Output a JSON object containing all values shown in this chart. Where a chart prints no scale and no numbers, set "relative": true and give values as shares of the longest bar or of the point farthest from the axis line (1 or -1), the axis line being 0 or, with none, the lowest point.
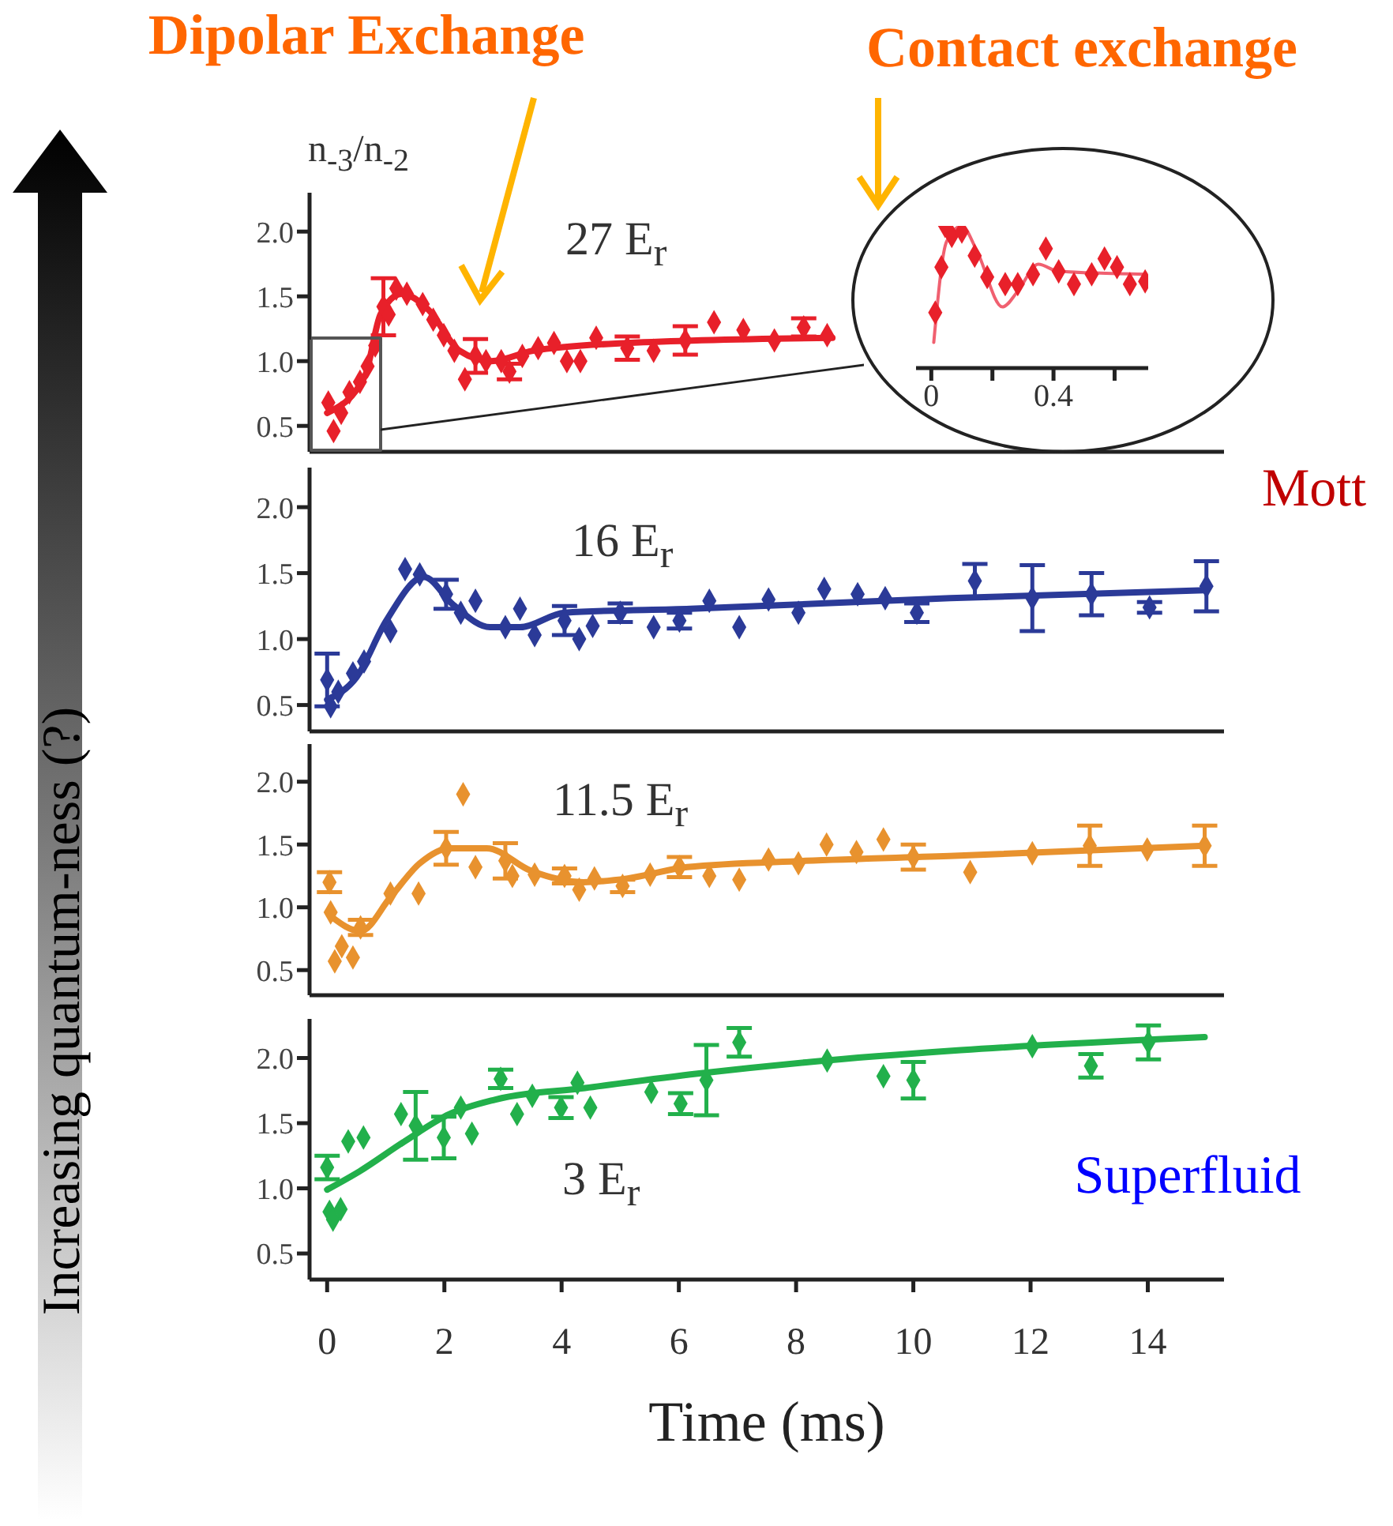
{
  "chart_data": [
    {
      "type": "scatter",
      "title": "27 E$_{r}$",
      "ylabel": "n$_{-3}$/n$_{-2}$",
      "annotations": [
        "Dipolar Exchange",
        "Contact exchange",
        "Increasing quantum-ness (?)"
      ],
      "xlim": [
        -0.3,
        15.3
      ],
      "xticks": [
        0,
        2,
        4,
        6,
        8,
        10,
        12,
        14
      ],
      "ylim": [
        0.3,
        2.3
      ],
      "yticks": [
        {
          "value": 0.5,
          "label": "0.5"
        },
        {
          "value": 1,
          "label": "1.0"
        },
        {
          "value": 1.5,
          "label": "1.5"
        },
        {
          "value": 2,
          "label": "2.0"
        }
      ],
      "tick_labels": "y",
      "series": [
        {
          "type": "scatter",
          "marker": "diamond",
          "color": "#e8202a",
          "x": [
            0.02,
            0.11,
            0.24,
            0.38,
            0.56,
            0.69,
            0.82,
            0.96,
            1.05,
            1.18,
            1.36,
            1.63,
            1.81,
            1.99,
            2.17,
            2.35,
            2.53,
            2.71,
            2.97,
            3.11,
            3.33,
            3.6,
            3.87,
            4.09,
            4.32,
            4.59,
            5.12,
            5.57,
            6.11,
            6.6,
            7.1,
            7.63,
            8.13,
            8.53
          ],
          "values": [
            0.68,
            0.46,
            0.6,
            0.76,
            0.84,
            0.96,
            1.12,
            1.42,
            1.36,
            1.56,
            1.52,
            1.44,
            1.32,
            1.2,
            1.08,
            0.86,
            1.04,
            1.0,
            1.0,
            0.92,
            1.04,
            1.1,
            1.14,
            1.0,
            1.0,
            1.18,
            1.1,
            1.08,
            1.16,
            1.3,
            1.24,
            1.16,
            1.26,
            1.2
          ],
          "errors": [
            null,
            null,
            null,
            null,
            null,
            null,
            null,
            0.22,
            null,
            null,
            null,
            null,
            null,
            null,
            null,
            null,
            0.13,
            null,
            null,
            0.06,
            null,
            null,
            null,
            null,
            null,
            null,
            0.09,
            null,
            0.11,
            null,
            null,
            null,
            0.07,
            null
          ]
        },
        {
          "type": "line",
          "color": "#e8202a",
          "x": [
            0,
            0.64,
            0.91,
            1.27,
            1.72,
            2.26,
            2.8,
            3.51,
            5.12,
            8.62
          ],
          "values": [
            0.6,
            0.88,
            1.36,
            1.52,
            1.4,
            1.08,
            1.0,
            1.08,
            1.14,
            1.18
          ]
        }
      ]
    },
    {
      "type": "scatter",
      "relative": true,
      "xlim": [
        -0.05,
        0.71
      ],
      "xticks": [
        0,
        {
          "value": 0.2,
          "label": null
        },
        0.4,
        {
          "value": 0.6,
          "label": null
        }
      ],
      "series": [
        {
          "type": "scatter",
          "marker": "diamond",
          "color": "#e8202a",
          "x": [
            0.013,
            0.033,
            0.045,
            0.067,
            0.1,
            0.142,
            0.183,
            0.242,
            0.283,
            0.333,
            0.375,
            0.417,
            0.467,
            0.525,
            0.567,
            0.608,
            0.65,
            0.7
          ],
          "values": [
            0.39,
            0.71,
            1,
            0.93,
            0.96,
            0.79,
            0.64,
            0.59,
            0.59,
            0.66,
            0.84,
            0.68,
            0.59,
            0.66,
            0.77,
            0.71,
            0.59,
            0.61
          ]
        },
        {
          "type": "line",
          "color": "#f06070",
          "x": [
            0.008,
            0.05,
            0.1,
            0.15,
            0.233,
            0.283,
            0.35,
            0.417,
            0.7
          ],
          "values": [
            0.18,
            0.89,
            1,
            0.82,
            0.43,
            0.54,
            0.73,
            0.68,
            0.66
          ]
        }
      ]
    },
    {
      "type": "scatter",
      "title": "16 E$_{r}$",
      "annotations": [
        "Mott"
      ],
      "xlim": [
        -0.3,
        15.3
      ],
      "xticks": [
        0,
        2,
        4,
        6,
        8,
        10,
        12,
        14
      ],
      "ylim": [
        0.3,
        2.3
      ],
      "yticks": [
        {
          "value": 0.5,
          "label": "0.5"
        },
        {
          "value": 1,
          "label": "1.0"
        },
        {
          "value": 1.5,
          "label": "1.5"
        },
        {
          "value": 2,
          "label": "2.0"
        }
      ],
      "tick_labels": "y",
      "series": [
        {
          "type": "scatter",
          "marker": "diamond",
          "color": "#2b3a98",
          "x": [
            0,
            0.06,
            0.19,
            0.44,
            0.63,
            1.08,
            1.33,
            1.58,
            2.03,
            2.28,
            2.53,
            3.04,
            3.29,
            3.54,
            4.05,
            4.3,
            4.53,
            5.0,
            5.57,
            6.01,
            6.52,
            7.03,
            7.53,
            8.04,
            8.48,
            9.05,
            9.52,
            10.06,
            11.05,
            12.03,
            13.04,
            14.03,
            15.0
          ],
          "values": [
            0.69,
            0.49,
            0.6,
            0.74,
            0.83,
            1.06,
            1.53,
            1.49,
            1.34,
            1.2,
            1.29,
            1.09,
            1.23,
            1.03,
            1.14,
            1.0,
            1.1,
            1.2,
            1.09,
            1.14,
            1.29,
            1.09,
            1.3,
            1.2,
            1.38,
            1.34,
            1.31,
            1.2,
            1.44,
            1.31,
            1.34,
            1.24,
            1.4
          ],
          "errors": [
            0.2,
            null,
            null,
            null,
            null,
            null,
            null,
            null,
            0.11,
            null,
            null,
            null,
            null,
            null,
            0.11,
            null,
            null,
            0.07,
            null,
            0.06,
            null,
            null,
            null,
            null,
            null,
            null,
            null,
            0.07,
            0.13,
            0.25,
            0.16,
            0.04,
            0.19
          ]
        },
        {
          "type": "line",
          "color": "#2b3a98",
          "x": [
            0,
            0.5,
            1.01,
            1.65,
            2.15,
            2.78,
            3.29,
            4.05,
            6.2,
            10.63,
            15.0
          ],
          "values": [
            0.54,
            0.71,
            1.14,
            1.47,
            1.26,
            1.09,
            1.09,
            1.2,
            1.23,
            1.31,
            1.37
          ]
        }
      ]
    },
    {
      "type": "scatter",
      "title": "11.5 E$_{r}$",
      "xlim": [
        -0.3,
        15.3
      ],
      "xticks": [
        0,
        2,
        4,
        6,
        8,
        10,
        12,
        14
      ],
      "ylim": [
        0.3,
        2.3
      ],
      "yticks": [
        {
          "value": 0.5,
          "label": "0.5"
        },
        {
          "value": 1,
          "label": "1.0"
        },
        {
          "value": 1.5,
          "label": "1.5"
        },
        {
          "value": 2,
          "label": "2.0"
        }
      ],
      "tick_labels": "y",
      "series": [
        {
          "type": "scatter",
          "marker": "diamond",
          "color": "#e8922e",
          "x": [
            0.04,
            0.06,
            0.13,
            0.25,
            0.44,
            0.57,
            1.08,
            1.56,
            2.03,
            2.32,
            2.53,
            3.04,
            3.16,
            3.54,
            4.05,
            4.3,
            4.56,
            5.04,
            5.51,
            6.01,
            6.52,
            7.03,
            7.53,
            8.04,
            8.52,
            9.03,
            9.49,
            10.0,
            10.97,
            12.03,
            13.01,
            13.99,
            14.97
          ],
          "values": [
            1.2,
            0.96,
            0.57,
            0.69,
            0.6,
            0.84,
            1.11,
            1.11,
            1.47,
            1.9,
            1.32,
            1.37,
            1.25,
            1.26,
            1.25,
            1.14,
            1.23,
            1.17,
            1.26,
            1.32,
            1.25,
            1.22,
            1.38,
            1.35,
            1.5,
            1.44,
            1.54,
            1.4,
            1.28,
            1.43,
            1.49,
            1.46,
            1.49
          ],
          "errors": [
            0.08,
            null,
            null,
            null,
            null,
            0.06,
            null,
            null,
            0.13,
            null,
            null,
            0.14,
            null,
            null,
            0.06,
            null,
            null,
            0.05,
            null,
            0.08,
            null,
            null,
            null,
            null,
            null,
            null,
            null,
            0.1,
            null,
            null,
            0.16,
            null,
            0.16
          ]
        },
        {
          "type": "line",
          "color": "#e8922e",
          "x": [
            0.06,
            0.57,
            1.08,
            1.58,
            2.09,
            2.72,
            3.48,
            4.37,
            5.13,
            6.14,
            8.16,
            10.7,
            14.97
          ],
          "values": [
            0.93,
            0.81,
            1.08,
            1.35,
            1.47,
            1.47,
            1.29,
            1.2,
            1.23,
            1.32,
            1.37,
            1.41,
            1.49
          ]
        }
      ]
    },
    {
      "type": "scatter",
      "title": "3 E$_{r}$",
      "xlabel": "Time (ms)",
      "annotations": [
        "Superfluid"
      ],
      "xlim": [
        -0.3,
        15.3
      ],
      "xticks": [
        0,
        2,
        4,
        6,
        8,
        10,
        12,
        14
      ],
      "ylim": [
        0.3,
        2.3
      ],
      "yticks": [
        {
          "value": 0.5,
          "label": "0.5"
        },
        {
          "value": 1,
          "label": "1.0"
        },
        {
          "value": 1.5,
          "label": "1.5"
        },
        {
          "value": 2,
          "label": "2.0"
        }
      ],
      "series": [
        {
          "type": "scatter",
          "marker": "diamond",
          "color": "#22b04b",
          "x": [
            0,
            0.04,
            0.1,
            0.23,
            0.36,
            0.62,
            1.26,
            1.51,
            1.99,
            2.28,
            2.47,
            2.96,
            3.24,
            3.5,
            3.99,
            4.27,
            4.49,
            5.53,
            6.03,
            6.47,
            7.03,
            8.53,
            9.49,
            10.0,
            12.03,
            13.03,
            14.01
          ],
          "values": [
            1.16,
            0.82,
            0.76,
            0.84,
            1.36,
            1.39,
            1.57,
            1.48,
            1.39,
            1.62,
            1.42,
            1.84,
            1.57,
            1.71,
            1.62,
            1.81,
            1.62,
            1.74,
            1.65,
            1.83,
            2.12,
            1.98,
            1.86,
            1.83,
            2.09,
            1.94,
            2.12
          ],
          "errors": [
            0.09,
            null,
            null,
            null,
            null,
            null,
            null,
            0.26,
            0.16,
            null,
            null,
            0.07,
            null,
            null,
            0.08,
            null,
            null,
            null,
            0.08,
            0.27,
            0.11,
            null,
            null,
            0.14,
            null,
            0.09,
            0.13
          ]
        },
        {
          "type": "line",
          "color": "#22b04b",
          "x": [
            0,
            0.55,
            1.32,
            2.09,
            2.86,
            4.4,
            6.32,
            8.24,
            10.81,
            14.97
          ],
          "values": [
            0.99,
            1.13,
            1.36,
            1.57,
            1.68,
            1.77,
            1.88,
            1.97,
            2.06,
            2.16
          ]
        }
      ]
    }
  ]
}
